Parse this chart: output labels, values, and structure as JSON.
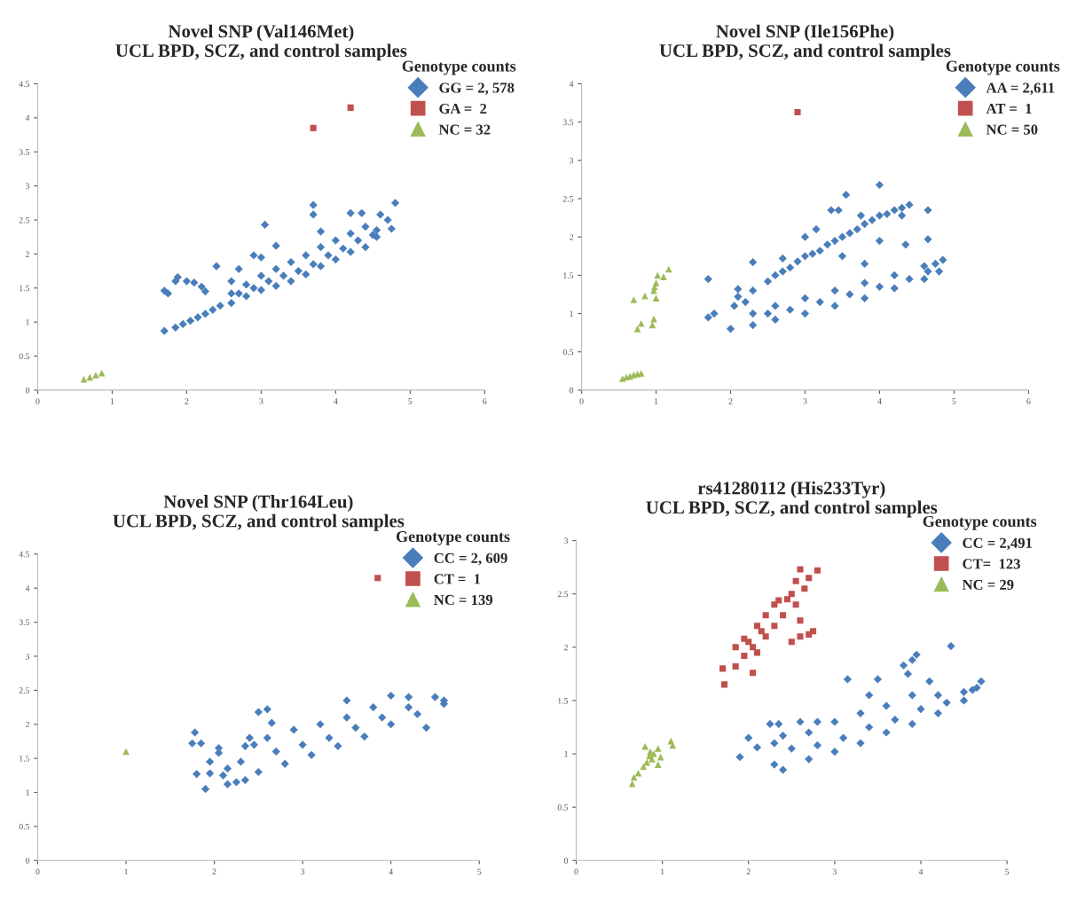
{
  "chart_data": [
    {
      "type": "scatter",
      "title": "Novel SNP (Val146Met)\nUCL BPD, SCZ, and control samples",
      "xlim": [
        0,
        6
      ],
      "ylim": [
        0,
        4.5
      ],
      "xticks": [
        0,
        1,
        2,
        3,
        4,
        5,
        6
      ],
      "yticks": [
        0,
        0.5,
        1,
        1.5,
        2,
        2.5,
        3,
        3.5,
        4,
        4.5
      ],
      "legend": "top right",
      "legend_title": "Genotype counts",
      "series": [
        {
          "name": "GG = 2, 578",
          "color": "#4a7ebb",
          "marker": "diamond",
          "x": [
            1.7,
            1.85,
            1.95,
            2.05,
            2.15,
            2.25,
            2.35,
            2.45,
            2.6,
            2.6,
            2.8,
            2.8,
            3.0,
            3.0,
            3.2,
            3.2,
            3.4,
            3.4,
            3.6,
            3.6,
            3.8,
            3.8,
            4.0,
            4.0,
            4.2,
            4.2,
            4.4,
            4.4,
            4.55,
            4.55,
            2.7,
            2.9,
            3.1,
            3.3,
            3.5,
            3.7,
            3.9,
            4.1,
            4.3,
            4.5,
            1.7,
            1.75,
            1.85,
            1.88,
            2.0,
            2.1,
            2.2,
            2.25,
            2.4,
            2.6,
            2.7,
            2.9,
            3.0,
            3.05,
            3.2,
            3.7,
            3.7,
            3.8,
            4.2,
            4.35,
            4.6,
            4.7,
            4.75,
            4.8
          ],
          "values": [
            0.87,
            0.92,
            0.97,
            1.02,
            1.07,
            1.12,
            1.18,
            1.24,
            1.28,
            1.42,
            1.38,
            1.55,
            1.47,
            1.68,
            1.53,
            1.78,
            1.6,
            1.88,
            1.7,
            1.98,
            1.82,
            2.1,
            1.92,
            2.2,
            2.03,
            2.3,
            2.1,
            2.4,
            2.25,
            2.35,
            1.42,
            1.5,
            1.6,
            1.68,
            1.75,
            1.85,
            1.98,
            2.08,
            2.2,
            2.28,
            1.46,
            1.42,
            1.6,
            1.66,
            1.6,
            1.58,
            1.52,
            1.45,
            1.82,
            1.6,
            1.78,
            1.98,
            1.95,
            2.43,
            2.12,
            2.72,
            2.58,
            2.33,
            2.6,
            2.6,
            2.58,
            2.5,
            2.37,
            2.75
          ]
        },
        {
          "name": "GA =  2",
          "color": "#c0504d",
          "marker": "square",
          "x": [
            3.7,
            4.2
          ],
          "values": [
            3.85,
            4.15
          ]
        },
        {
          "name": "NC = 32",
          "color": "#9bbb59",
          "marker": "triangle",
          "x": [
            0.62,
            0.7,
            0.78,
            0.86
          ],
          "values": [
            0.16,
            0.19,
            0.22,
            0.25
          ]
        }
      ]
    },
    {
      "type": "scatter",
      "title": "Novel SNP (Ile156Phe)\nUCL BPD, SCZ, and control samples",
      "xlim": [
        0,
        6
      ],
      "ylim": [
        0,
        4
      ],
      "xticks": [
        0,
        1,
        2,
        3,
        4,
        5,
        6
      ],
      "yticks": [
        0,
        0.5,
        1,
        1.5,
        2,
        2.5,
        3,
        3.5,
        4
      ],
      "legend": "top right",
      "legend_title": "Genotype counts",
      "series": [
        {
          "name": "AA = 2,611",
          "color": "#4a7ebb",
          "marker": "diamond",
          "x": [
            2.1,
            2.3,
            2.5,
            2.7,
            2.9,
            3.1,
            3.3,
            3.5,
            3.7,
            3.9,
            4.1,
            4.3,
            4.4,
            2.6,
            2.8,
            3.0,
            3.2,
            3.4,
            3.6,
            3.8,
            4.0,
            4.2,
            2.0,
            2.3,
            2.6,
            3.0,
            3.4,
            3.8,
            4.2,
            4.6,
            2.3,
            2.6,
            3.0,
            3.4,
            3.8,
            4.2,
            4.6,
            2.5,
            2.8,
            3.2,
            3.6,
            4.0,
            4.4,
            4.65,
            1.7,
            1.7,
            1.78,
            2.05,
            2.1,
            2.3,
            2.7,
            3.0,
            3.15,
            3.35,
            3.45,
            3.55,
            3.75,
            4.0,
            4.0,
            4.3,
            4.35,
            4.65,
            4.65,
            4.75,
            4.8,
            4.85,
            3.5,
            3.8,
            2.2
          ],
          "values": [
            1.22,
            1.3,
            1.42,
            1.55,
            1.68,
            1.78,
            1.9,
            2.0,
            2.1,
            2.22,
            2.3,
            2.38,
            2.42,
            1.5,
            1.6,
            1.75,
            1.82,
            1.95,
            2.05,
            2.17,
            2.28,
            2.35,
            0.8,
            0.85,
            0.92,
            1.0,
            1.1,
            1.2,
            1.33,
            1.45,
            1.0,
            1.1,
            1.2,
            1.3,
            1.4,
            1.5,
            1.62,
            1.0,
            1.05,
            1.15,
            1.25,
            1.35,
            1.45,
            1.55,
            1.45,
            0.95,
            1.0,
            1.1,
            1.32,
            1.67,
            1.72,
            2.0,
            2.1,
            2.35,
            2.35,
            2.55,
            2.28,
            2.68,
            1.95,
            2.28,
            1.9,
            2.35,
            1.97,
            1.65,
            1.55,
            1.7,
            1.75,
            1.65,
            1.15
          ]
        },
        {
          "name": "AT =  1",
          "color": "#c0504d",
          "marker": "square",
          "x": [
            2.9
          ],
          "values": [
            3.63
          ]
        },
        {
          "name": "NC = 50",
          "color": "#9bbb59",
          "marker": "triangle",
          "x": [
            0.55,
            0.6,
            0.65,
            0.7,
            0.75,
            0.8,
            0.7,
            0.75,
            0.8,
            0.85,
            0.95,
            0.97,
            0.97,
            1.0,
            1.0,
            1.02,
            1.1,
            1.17,
            0.98
          ],
          "values": [
            0.15,
            0.17,
            0.18,
            0.2,
            0.21,
            0.22,
            1.18,
            0.8,
            0.87,
            1.23,
            0.85,
            0.93,
            1.3,
            1.4,
            1.2,
            1.5,
            1.48,
            1.58,
            1.35
          ]
        }
      ]
    },
    {
      "type": "scatter",
      "title": "Novel SNP (Thr164Leu)\nUCL BPD, SCZ, and control samples",
      "xlim": [
        0,
        5
      ],
      "ylim": [
        0,
        4.5
      ],
      "xticks": [
        0,
        1,
        2,
        3,
        4,
        5
      ],
      "yticks": [
        0,
        0.5,
        1,
        1.5,
        2,
        2.5,
        3,
        3.5,
        4,
        4.5
      ],
      "legend": "top right",
      "legend_title": "Genotype counts",
      "series": [
        {
          "name": "CC = 2, 609",
          "color": "#4a7ebb",
          "marker": "diamond",
          "x": [
            2.5,
            2.8,
            3.1,
            3.4,
            3.7,
            4.0,
            4.3,
            4.6,
            2.6,
            2.9,
            3.2,
            3.5,
            3.8,
            4.0,
            4.2,
            4.5,
            2.7,
            3.0,
            3.3,
            3.6,
            3.9,
            4.2,
            4.6,
            1.75,
            1.78,
            1.85,
            1.8,
            1.9,
            1.95,
            1.95,
            2.05,
            2.05,
            2.1,
            2.15,
            2.15,
            2.25,
            2.3,
            2.35,
            2.35,
            2.4,
            2.5,
            2.6,
            2.65,
            3.5,
            4.4,
            2.45
          ],
          "values": [
            1.3,
            1.42,
            1.55,
            1.68,
            1.82,
            2.0,
            2.15,
            2.3,
            1.8,
            1.92,
            2.0,
            2.1,
            2.25,
            2.42,
            2.4,
            2.4,
            1.6,
            1.7,
            1.8,
            1.95,
            2.1,
            2.25,
            2.35,
            1.72,
            1.88,
            1.72,
            1.27,
            1.05,
            1.28,
            1.45,
            1.58,
            1.65,
            1.25,
            1.12,
            1.35,
            1.15,
            1.45,
            1.18,
            1.68,
            1.8,
            2.18,
            2.22,
            2.02,
            2.35,
            1.95,
            1.7
          ]
        },
        {
          "name": "CT =  1",
          "color": "#c0504d",
          "marker": "square",
          "x": [
            3.85
          ],
          "values": [
            4.15
          ]
        },
        {
          "name": "NC = 139",
          "color": "#9bbb59",
          "marker": "triangle",
          "x": [
            1.0
          ],
          "values": [
            1.6
          ]
        }
      ]
    },
    {
      "type": "scatter",
      "title": "rs41280112 (His233Tyr)\nUCL BPD, SCZ, and control samples",
      "xlim": [
        0,
        5
      ],
      "ylim": [
        0,
        3
      ],
      "xticks": [
        0,
        1,
        2,
        3,
        4,
        5
      ],
      "yticks": [
        0,
        0.5,
        1,
        1.5,
        2,
        2.5,
        3
      ],
      "legend": "top right",
      "legend_title": "Genotype counts",
      "series": [
        {
          "name": "CC = 2,491",
          "color": "#4a7ebb",
          "marker": "diamond",
          "x": [
            2.4,
            2.7,
            3.0,
            3.3,
            3.6,
            3.9,
            4.2,
            4.5,
            2.7,
            3.0,
            3.3,
            3.6,
            3.9,
            4.2,
            4.5,
            2.8,
            3.1,
            3.4,
            3.7,
            4.0,
            4.3,
            4.6,
            1.9,
            2.0,
            2.1,
            2.25,
            2.3,
            2.35,
            2.3,
            2.4,
            2.5,
            2.6,
            2.8,
            3.15,
            3.5,
            3.8,
            3.85,
            3.9,
            3.95,
            4.1,
            4.35,
            4.7,
            4.65,
            3.4
          ],
          "values": [
            0.85,
            0.95,
            1.02,
            1.1,
            1.2,
            1.28,
            1.38,
            1.5,
            1.2,
            1.3,
            1.38,
            1.45,
            1.55,
            1.55,
            1.58,
            1.08,
            1.15,
            1.25,
            1.32,
            1.42,
            1.48,
            1.6,
            0.97,
            1.15,
            1.06,
            1.28,
            1.1,
            1.28,
            0.9,
            1.17,
            1.05,
            1.3,
            1.3,
            1.7,
            1.7,
            1.83,
            1.75,
            1.88,
            1.93,
            1.68,
            2.01,
            1.68,
            1.62,
            1.55
          ]
        },
        {
          "name": "CT=  123",
          "color": "#c0504d",
          "marker": "square",
          "x": [
            1.72,
            1.7,
            1.85,
            1.85,
            1.95,
            1.95,
            2.05,
            2.1,
            2.1,
            2.2,
            2.2,
            2.3,
            2.3,
            2.35,
            2.4,
            2.45,
            2.5,
            2.55,
            2.55,
            2.65,
            2.7,
            2.6,
            2.8,
            2.05,
            2.5,
            2.6,
            2.7,
            2.75,
            2.6,
            2.15,
            2.0
          ],
          "values": [
            1.65,
            1.8,
            1.82,
            2.0,
            1.92,
            2.08,
            2.0,
            2.2,
            1.95,
            2.1,
            2.3,
            2.2,
            2.4,
            2.44,
            2.3,
            2.45,
            2.5,
            2.4,
            2.62,
            2.55,
            2.65,
            2.73,
            2.72,
            1.76,
            2.05,
            2.1,
            2.12,
            2.15,
            2.25,
            2.15,
            2.05
          ]
        },
        {
          "name": "NC = 29",
          "color": "#9bbb59",
          "marker": "triangle",
          "x": [
            0.65,
            0.67,
            0.72,
            0.78,
            0.8,
            0.82,
            0.85,
            0.88,
            0.9,
            0.95,
            0.95,
            0.98,
            1.1,
            1.12,
            0.86
          ],
          "values": [
            0.72,
            0.78,
            0.82,
            0.88,
            1.07,
            0.92,
            0.98,
            0.95,
            1.0,
            0.9,
            1.05,
            0.97,
            1.12,
            1.08,
            1.02
          ]
        }
      ]
    }
  ]
}
